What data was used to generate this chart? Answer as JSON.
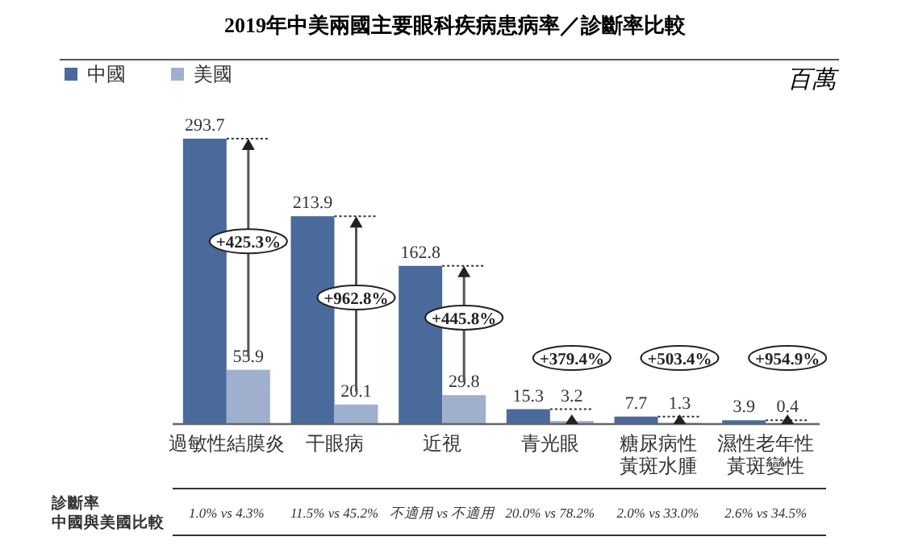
{
  "chart_data": {
    "type": "bar",
    "title": "2019年中美兩國主要眼科疾病患病率／診斷率比較",
    "ylabel": "百萬",
    "data_labels": true,
    "legend": "top left",
    "categories": [
      "過敏性結膜炎",
      "干眼病",
      "近視",
      "青光眼",
      "糖尿病性黃斑水腫",
      "濕性老年性黃斑變性"
    ],
    "series": [
      {
        "name": "中國",
        "color": "#4a6a9c",
        "values": [
          293.7,
          213.9,
          162.8,
          15.3,
          7.7,
          3.9
        ]
      },
      {
        "name": "美國",
        "color": "#9fb0cf",
        "values": [
          55.9,
          20.1,
          29.8,
          3.2,
          1.3,
          0.4
        ]
      }
    ],
    "annotations": [
      "診斷率",
      "中國與美國比較",
      "+425.3%",
      "+962.8%",
      "+445.8%",
      "+379.4%",
      "+503.4%",
      "+954.9%",
      "1.0% vs 4.3%",
      "11.5% vs 45.2%",
      "不適用 vs 不適用",
      "20.0% vs 78.2%",
      "2.0% vs 33.0%",
      "2.6% vs 34.5%"
    ]
  }
}
